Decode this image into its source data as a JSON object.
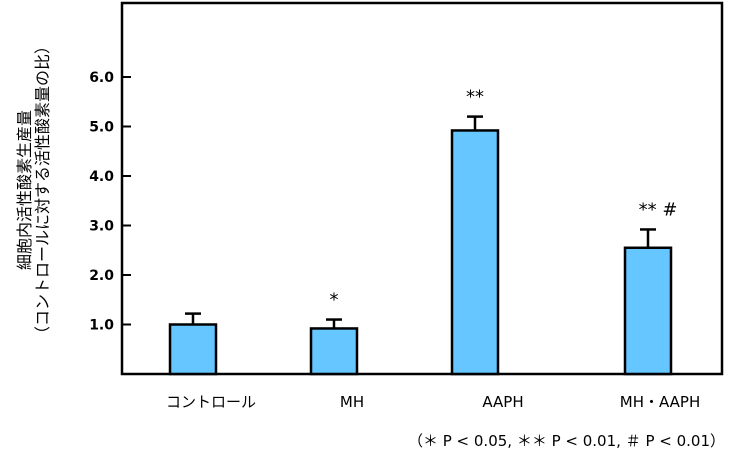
{
  "chart_data": {
    "type": "bar",
    "categories": [
      "コントロール",
      "MH",
      "AAPH",
      "MH・AAPH"
    ],
    "values": [
      1.0,
      0.92,
      4.92,
      2.55
    ],
    "errors": [
      0.22,
      0.18,
      0.28,
      0.37
    ],
    "significance": [
      "",
      "*",
      "**",
      "** #"
    ],
    "ylabel_lines": [
      "細胞内活性酸素生産量",
      "（コントロールに対する活性酸素量の比）"
    ],
    "ylim": [
      0,
      7.0
    ],
    "yticks": [
      1.0,
      2.0,
      3.0,
      4.0,
      5.0,
      6.0
    ],
    "ytick_labels": [
      "1.0",
      "2.0",
      "3.0",
      "4.0",
      "5.0",
      "6.0"
    ],
    "footnote": "（＊ P < 0.05, ＊＊ P < 0.01, ＃ P < 0.01）",
    "bar_color": "#66c6ff",
    "axis_color": "#000000",
    "grid": false,
    "legend": "none"
  }
}
